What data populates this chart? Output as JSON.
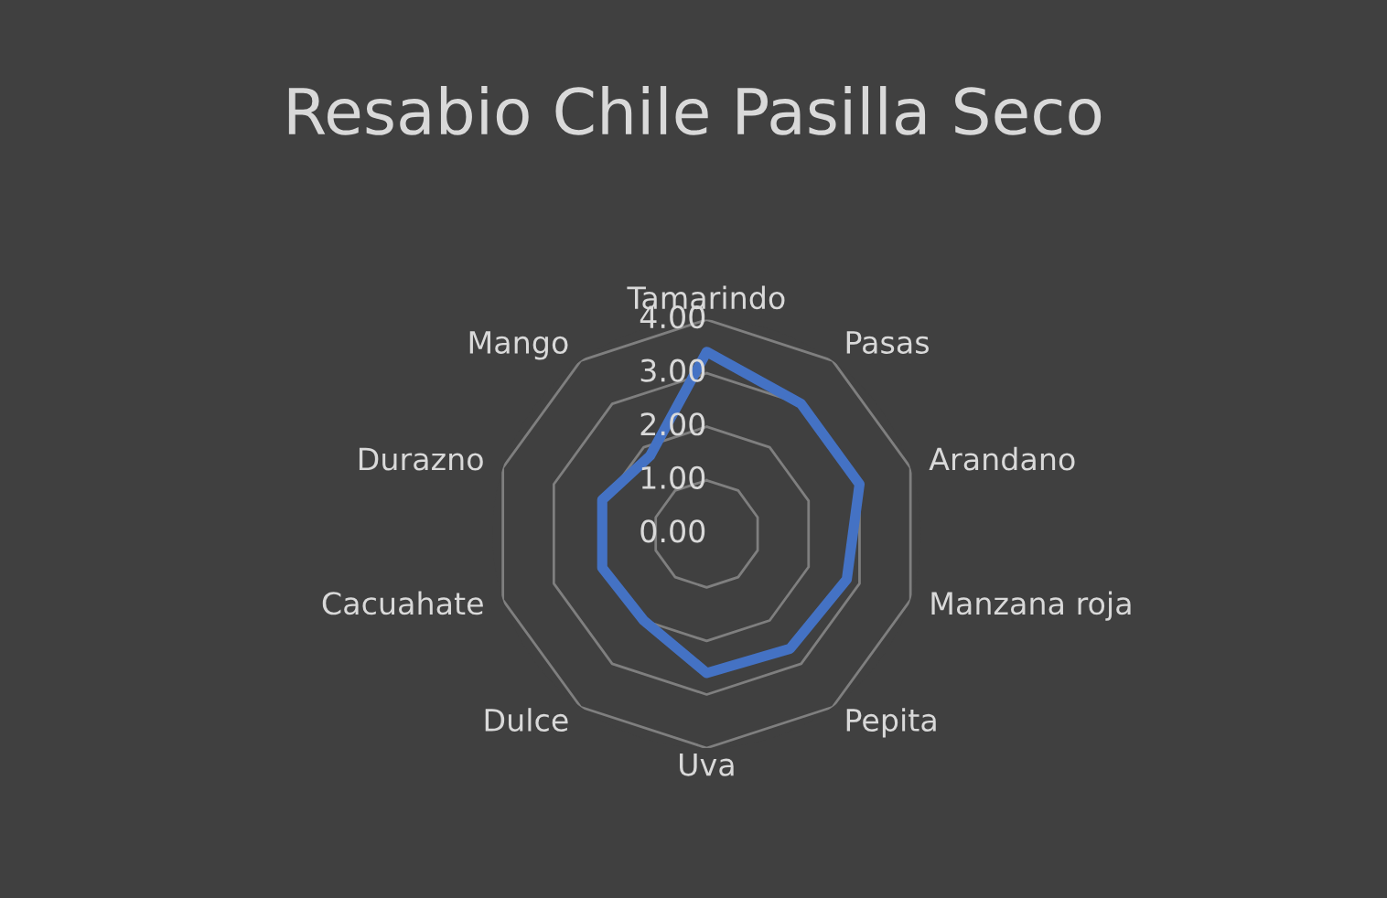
{
  "chart_data": {
    "type": "radar",
    "title": "Resabio Chile Pasilla Seco",
    "categories": [
      "Tamarindo",
      "Pasas",
      "Arandano",
      "Manzana roja",
      "Pepita",
      "Uva",
      "Dulce",
      "Cacuahate",
      "Durazno",
      "Mango"
    ],
    "series": [
      {
        "color": "#4472c4",
        "values": [
          3.4,
          3.0,
          3.0,
          2.75,
          2.65,
          2.6,
          2.0,
          2.05,
          2.05,
          1.8
        ]
      }
    ],
    "ylim": [
      0,
      4
    ],
    "yticks": [
      {
        "value": 0,
        "label": "0.00"
      },
      {
        "value": 1,
        "label": "1.00"
      },
      {
        "value": 2,
        "label": "2.00"
      },
      {
        "value": 3,
        "label": "3.00"
      },
      {
        "value": 4,
        "label": "4.00"
      }
    ],
    "grid": true
  }
}
